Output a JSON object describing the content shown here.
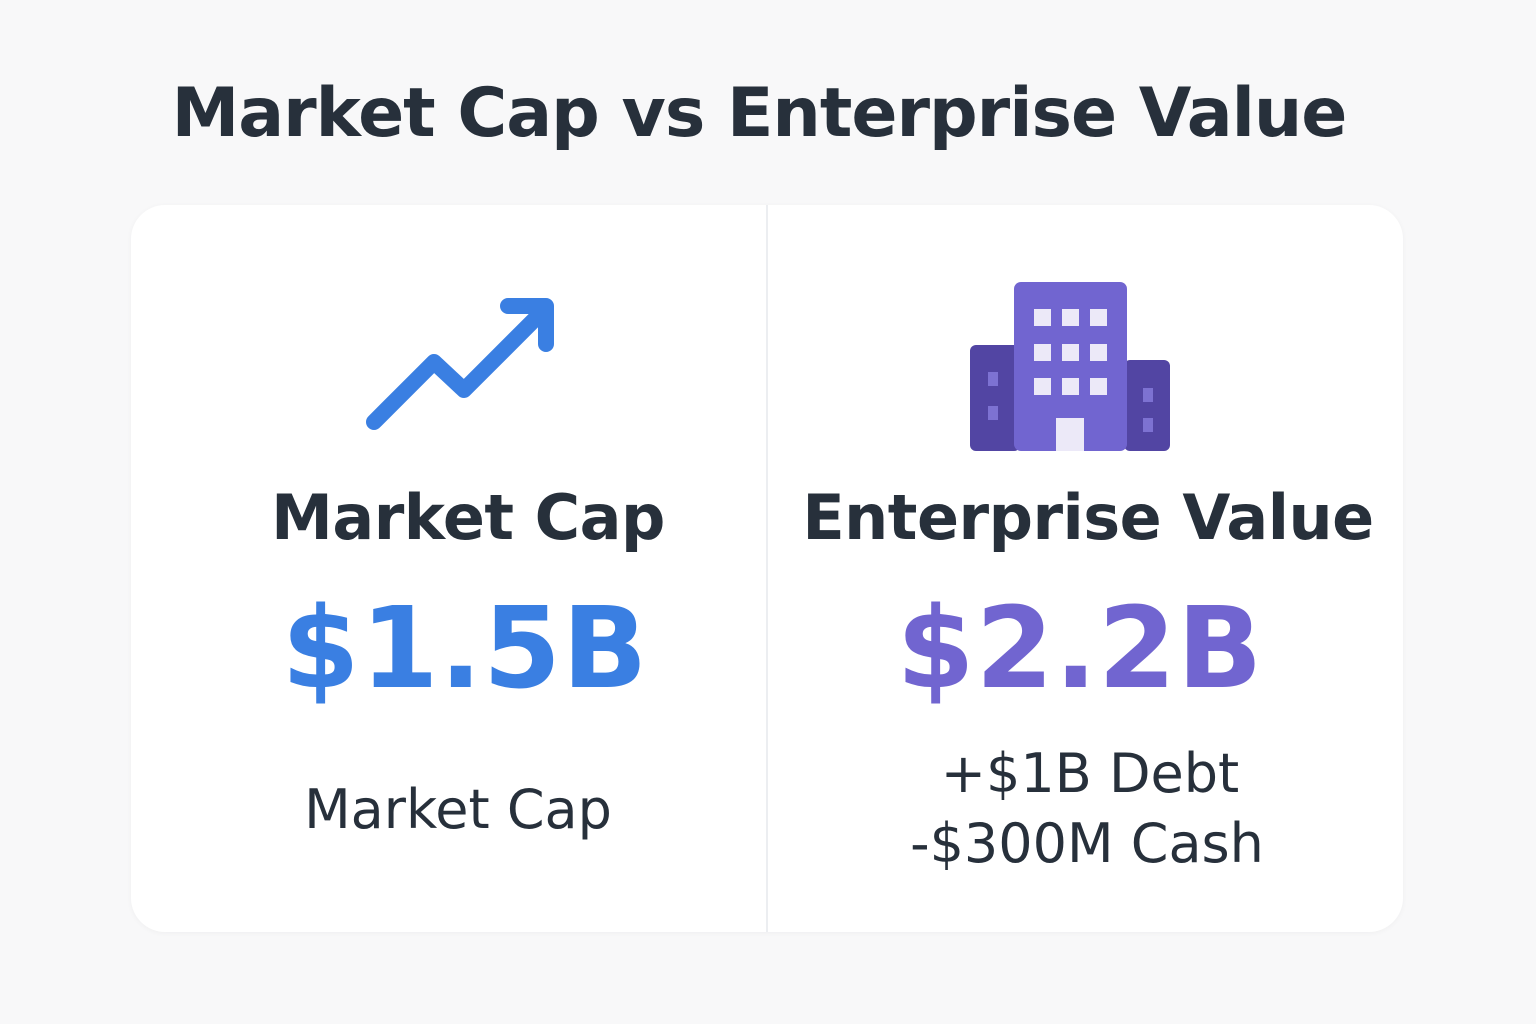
{
  "title": "Market Cap vs Enterprise Value",
  "left": {
    "icon": "trend-up-arrow-icon",
    "heading": "Market Cap",
    "amount": "$1.5B",
    "caption": "Market Cap"
  },
  "right": {
    "icon": "office-building-icon",
    "heading": "Enterprise Value",
    "amount": "$2.2B",
    "lines": [
      "+$1B Debt",
      "-$300M Cash"
    ]
  },
  "colors": {
    "left_accent": "#3a7fe2",
    "right_accent": "#7165d0",
    "right_accent_dark": "#5245a3",
    "text": "#27303b",
    "background": "#f8f8f9",
    "card": "#ffffff"
  }
}
